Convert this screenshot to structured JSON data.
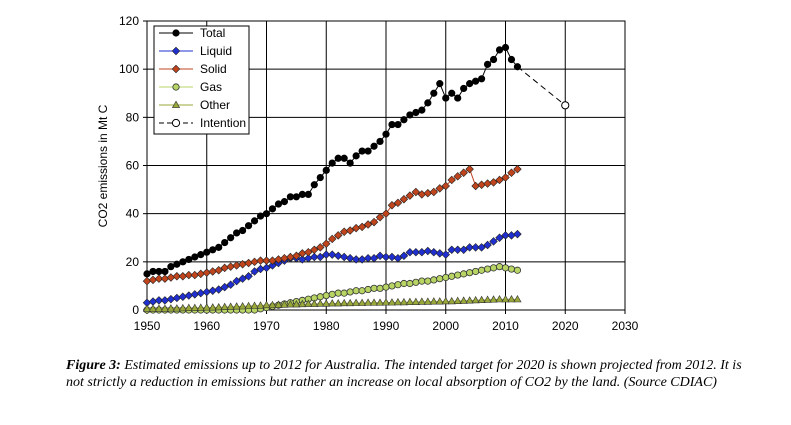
{
  "chart_data": {
    "type": "line",
    "xlabel": "",
    "ylabel": "CO2 emissions in Mt C",
    "xlim": [
      1950,
      2030
    ],
    "ylim": [
      0,
      120
    ],
    "xticks": [
      1950,
      1960,
      1970,
      1980,
      1990,
      2000,
      2010,
      2020,
      2030
    ],
    "yticks": [
      0,
      20,
      40,
      60,
      80,
      100,
      120
    ],
    "grid": true,
    "legend_position": "top-left",
    "series": [
      {
        "name": "Total",
        "color": "#000000",
        "marker": "octagon-filled",
        "line": "solid",
        "x": [
          1950,
          1951,
          1952,
          1953,
          1954,
          1955,
          1956,
          1957,
          1958,
          1959,
          1960,
          1961,
          1962,
          1963,
          1964,
          1965,
          1966,
          1967,
          1968,
          1969,
          1970,
          1971,
          1972,
          1973,
          1974,
          1975,
          1976,
          1977,
          1978,
          1979,
          1980,
          1981,
          1982,
          1983,
          1984,
          1985,
          1986,
          1987,
          1988,
          1989,
          1990,
          1991,
          1992,
          1993,
          1994,
          1995,
          1996,
          1997,
          1998,
          1999,
          2000,
          2001,
          2002,
          2003,
          2004,
          2005,
          2006,
          2007,
          2008,
          2009,
          2010,
          2011,
          2012
        ],
        "y": [
          15,
          16,
          16,
          16,
          18,
          19,
          20,
          21,
          22,
          23,
          24,
          25,
          26,
          28,
          30,
          32,
          33,
          35,
          37,
          39,
          40,
          42,
          44,
          45,
          47,
          47,
          48,
          48,
          52,
          55,
          58,
          61,
          63,
          63,
          61,
          64,
          66,
          66,
          68,
          70,
          73,
          77,
          77,
          79,
          81,
          82,
          83,
          86,
          90,
          94,
          88,
          90,
          88,
          92,
          94,
          95,
          96,
          102,
          104,
          108,
          109,
          104,
          101
        ],
        "color_note": ""
      },
      {
        "name": "Liquid",
        "color": "#1f2fd0",
        "marker": "diamond-filled",
        "line": "solid",
        "x": [
          1950,
          1951,
          1952,
          1953,
          1954,
          1955,
          1956,
          1957,
          1958,
          1959,
          1960,
          1961,
          1962,
          1963,
          1964,
          1965,
          1966,
          1967,
          1968,
          1969,
          1970,
          1971,
          1972,
          1973,
          1974,
          1975,
          1976,
          1977,
          1978,
          1979,
          1980,
          1981,
          1982,
          1983,
          1984,
          1985,
          1986,
          1987,
          1988,
          1989,
          1990,
          1991,
          1992,
          1993,
          1994,
          1995,
          1996,
          1997,
          1998,
          1999,
          2000,
          2001,
          2002,
          2003,
          2004,
          2005,
          2006,
          2007,
          2008,
          2009,
          2010,
          2011,
          2012
        ],
        "y": [
          3,
          3.5,
          4,
          4,
          4.5,
          5,
          5.5,
          6,
          6.5,
          7,
          7.5,
          8,
          8.5,
          9.5,
          10.5,
          12,
          13,
          14,
          16,
          17,
          17.5,
          18.5,
          19.5,
          20.5,
          21.5,
          21.5,
          21,
          21.5,
          22,
          22,
          23,
          23,
          22.5,
          22,
          21.5,
          21,
          21,
          21.5,
          21.5,
          22.5,
          22,
          22,
          21.5,
          22.5,
          24,
          24,
          24,
          24.5,
          24,
          23.5,
          23,
          25,
          25,
          25,
          26,
          26,
          26,
          27,
          28.5,
          30,
          31,
          31,
          31.5
        ]
      },
      {
        "name": "Solid",
        "color": "#c0441c",
        "marker": "diamond-filled",
        "line": "solid",
        "x": [
          1950,
          1951,
          1952,
          1953,
          1954,
          1955,
          1956,
          1957,
          1958,
          1959,
          1960,
          1961,
          1962,
          1963,
          1964,
          1965,
          1966,
          1967,
          1968,
          1969,
          1970,
          1971,
          1972,
          1973,
          1974,
          1975,
          1976,
          1977,
          1978,
          1979,
          1980,
          1981,
          1982,
          1983,
          1984,
          1985,
          1986,
          1987,
          1988,
          1989,
          1990,
          1991,
          1992,
          1993,
          1994,
          1995,
          1996,
          1997,
          1998,
          1999,
          2000,
          2001,
          2002,
          2003,
          2004,
          2005,
          2006,
          2007,
          2008,
          2009,
          2010,
          2011,
          2012
        ],
        "y": [
          12,
          12.5,
          13,
          13,
          13.5,
          14,
          14,
          14.5,
          14.5,
          15,
          15.5,
          16,
          16.5,
          17.5,
          18,
          18.5,
          19,
          19.5,
          20,
          20.5,
          20.5,
          20.5,
          21,
          21.5,
          22,
          22.5,
          23.5,
          24,
          25,
          26,
          27.5,
          29.5,
          31,
          32.5,
          33,
          34,
          34.5,
          35.5,
          36.5,
          38.5,
          40,
          43.5,
          44.5,
          46,
          47.5,
          49,
          48,
          48.5,
          49,
          50.5,
          51.5,
          54,
          55.5,
          57,
          58.5,
          51.5,
          52,
          52.5,
          53,
          54,
          55,
          57,
          58.5
        ]
      },
      {
        "name": "Gas",
        "color": "#b7d464",
        "marker": "circle-filled",
        "line": "solid",
        "x": [
          1950,
          1951,
          1952,
          1953,
          1954,
          1955,
          1956,
          1957,
          1958,
          1959,
          1960,
          1961,
          1962,
          1963,
          1964,
          1965,
          1966,
          1967,
          1968,
          1969,
          1970,
          1971,
          1972,
          1973,
          1974,
          1975,
          1976,
          1977,
          1978,
          1979,
          1980,
          1981,
          1982,
          1983,
          1984,
          1985,
          1986,
          1987,
          1988,
          1989,
          1990,
          1991,
          1992,
          1993,
          1994,
          1995,
          1996,
          1997,
          1998,
          1999,
          2000,
          2001,
          2002,
          2003,
          2004,
          2005,
          2006,
          2007,
          2008,
          2009,
          2010,
          2011,
          2012
        ],
        "y": [
          0,
          0,
          0,
          0,
          0,
          0,
          0,
          0,
          0,
          0,
          0,
          0,
          0,
          0,
          0,
          0,
          0,
          0,
          0,
          0.5,
          1,
          1.5,
          2,
          2.5,
          3,
          3.5,
          4,
          4.5,
          5,
          5.5,
          6,
          6.5,
          7,
          7,
          7.5,
          8,
          8,
          8.5,
          9,
          9,
          9.5,
          10,
          10.5,
          11,
          11,
          11.5,
          12,
          12,
          12.5,
          13,
          13.5,
          14,
          14.5,
          15,
          15.5,
          16,
          16.5,
          17,
          17.5,
          18,
          17.5,
          17,
          16.5
        ]
      },
      {
        "name": "Other",
        "color": "#9aa83a",
        "marker": "triangle-filled",
        "line": "solid",
        "x": [
          1950,
          1951,
          1952,
          1953,
          1954,
          1955,
          1956,
          1957,
          1958,
          1959,
          1960,
          1961,
          1962,
          1963,
          1964,
          1965,
          1966,
          1967,
          1968,
          1969,
          1970,
          1971,
          1972,
          1973,
          1974,
          1975,
          1976,
          1977,
          1978,
          1979,
          1980,
          1981,
          1982,
          1983,
          1984,
          1985,
          1986,
          1987,
          1988,
          1989,
          1990,
          1991,
          1992,
          1993,
          1994,
          1995,
          1996,
          1997,
          1998,
          1999,
          2000,
          2001,
          2002,
          2003,
          2004,
          2005,
          2006,
          2007,
          2008,
          2009,
          2010,
          2011,
          2012
        ],
        "y": [
          0.5,
          0.5,
          0.5,
          0.5,
          0.6,
          0.6,
          0.7,
          0.8,
          0.8,
          0.9,
          1,
          1,
          1.1,
          1.2,
          1.3,
          1.4,
          1.5,
          1.6,
          1.7,
          1.8,
          2,
          2,
          2.1,
          2.2,
          2.3,
          2.3,
          2.4,
          2.5,
          2.5,
          2.6,
          2.6,
          2.7,
          2.7,
          2.8,
          2.8,
          2.9,
          2.9,
          3,
          3,
          3,
          3.1,
          3.1,
          3.2,
          3.2,
          3.3,
          3.3,
          3.4,
          3.4,
          3.5,
          3.5,
          3.6,
          3.6,
          3.7,
          3.8,
          3.9,
          4,
          4.1,
          4.2,
          4.3,
          4.4,
          4.4,
          4.4,
          4.4
        ]
      },
      {
        "name": "Intention",
        "color": "#000000",
        "marker": "circle-open",
        "line": "dashed",
        "x": [
          2012,
          2020
        ],
        "y": [
          101,
          85
        ]
      }
    ]
  },
  "caption": {
    "label": "Figure 3:",
    "text": "Estimated emissions up to 2012 for Australia. The intended target for 2020 is shown projected from 2012. It is not strictly a reduction in emissions but rather an increase on local absorption of CO2 by the land. (Source CDIAC)"
  }
}
